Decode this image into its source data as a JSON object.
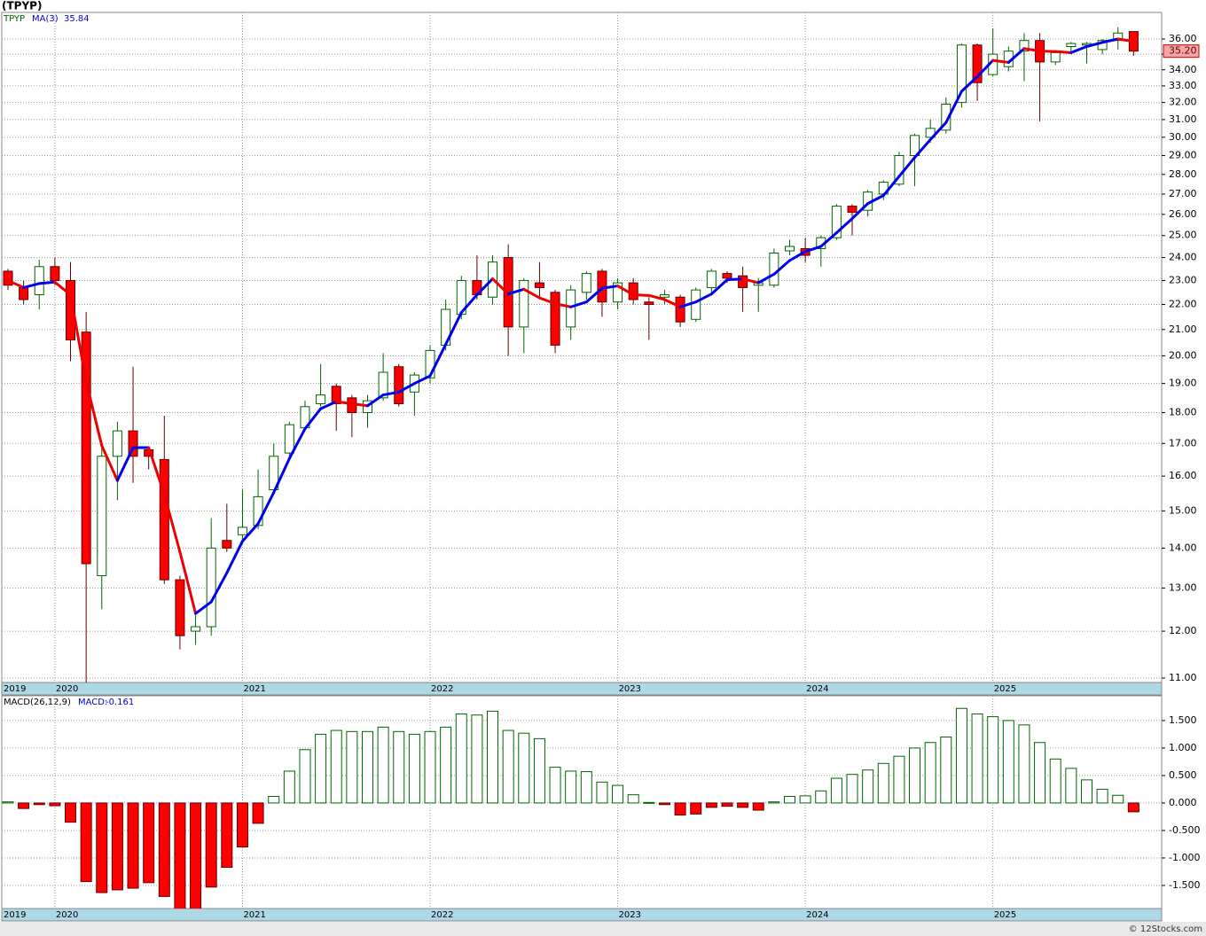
{
  "chart_data": [
    {
      "type": "candlestick",
      "title": "(TPYP)",
      "name": "TPYP",
      "categories": [
        "2019",
        null,
        null,
        "2020",
        null,
        null,
        null,
        null,
        null,
        null,
        null,
        null,
        null,
        null,
        null,
        "2021",
        null,
        null,
        null,
        null,
        null,
        null,
        null,
        null,
        null,
        null,
        null,
        "2022",
        null,
        null,
        null,
        null,
        null,
        null,
        null,
        null,
        null,
        null,
        null,
        "2023",
        null,
        null,
        null,
        null,
        null,
        null,
        null,
        null,
        null,
        null,
        null,
        "2024",
        null,
        null,
        null,
        null,
        null,
        null,
        null,
        null,
        null,
        null,
        null,
        "2025",
        null,
        null,
        null,
        null,
        null,
        null,
        null,
        null,
        null
      ],
      "open": [
        23.4,
        22.7,
        22.4,
        23.6,
        23.0,
        20.9,
        13.3,
        16.6,
        17.4,
        16.8,
        16.5,
        13.2,
        12.0,
        12.1,
        14.2,
        14.35,
        14.6,
        15.6,
        16.7,
        17.5,
        18.3,
        18.9,
        18.5,
        18.0,
        18.5,
        19.6,
        18.7,
        19.2,
        20.4,
        21.6,
        23.0,
        22.3,
        24.0,
        21.1,
        22.9,
        22.5,
        21.1,
        22.5,
        23.4,
        22.1,
        22.9,
        22.1,
        22.3,
        22.3,
        21.4,
        22.7,
        23.3,
        23.2,
        22.8,
        22.8,
        24.3,
        24.4,
        24.4,
        24.9,
        26.4,
        26.2,
        27.0,
        27.5,
        29.0,
        30.0,
        30.4,
        32.0,
        35.6,
        33.7,
        34.2,
        35.2,
        35.9,
        34.5,
        35.5,
        35.6,
        35.3,
        35.9,
        36.5
      ],
      "high": [
        23.5,
        23.0,
        23.9,
        24.0,
        23.8,
        21.7,
        17.0,
        17.7,
        19.6,
        16.9,
        17.9,
        13.3,
        12.4,
        14.8,
        15.2,
        15.6,
        16.2,
        17.0,
        17.7,
        18.4,
        19.7,
        19.0,
        18.6,
        18.6,
        20.1,
        19.7,
        19.4,
        20.4,
        22.2,
        23.2,
        24.1,
        24.1,
        24.6,
        23.1,
        23.8,
        22.6,
        22.8,
        23.4,
        23.5,
        23.1,
        23.1,
        22.3,
        22.6,
        22.4,
        22.7,
        23.5,
        23.4,
        23.6,
        23.1,
        24.4,
        24.8,
        24.9,
        25.0,
        26.5,
        26.5,
        27.2,
        27.7,
        29.2,
        30.2,
        31.0,
        32.3,
        35.7,
        35.7,
        36.7,
        35.5,
        36.4,
        36.4,
        35.2,
        35.8,
        35.8,
        36.0,
        36.8,
        36.5
      ],
      "low": [
        22.6,
        22.0,
        21.8,
        22.8,
        19.8,
        10.9,
        12.5,
        15.3,
        15.8,
        16.2,
        13.1,
        11.6,
        11.7,
        11.9,
        13.9,
        14.2,
        14.5,
        15.5,
        16.6,
        17.4,
        18.2,
        17.4,
        17.2,
        17.5,
        18.4,
        18.2,
        17.9,
        19.0,
        20.2,
        21.4,
        22.2,
        22.0,
        20.0,
        20.1,
        22.3,
        20.1,
        20.6,
        22.2,
        21.5,
        21.8,
        22.0,
        20.6,
        22.0,
        21.1,
        21.3,
        22.5,
        22.9,
        21.7,
        21.7,
        22.7,
        24.1,
        23.8,
        23.6,
        24.8,
        25.0,
        25.9,
        26.7,
        27.4,
        27.4,
        29.7,
        30.2,
        31.7,
        32.1,
        33.6,
        33.9,
        33.3,
        30.9,
        34.3,
        35.0,
        34.4,
        35.0,
        35.3,
        34.9
      ],
      "close": [
        22.8,
        22.2,
        23.6,
        23.0,
        20.6,
        13.6,
        16.6,
        17.4,
        16.6,
        16.6,
        13.2,
        11.9,
        12.1,
        14.0,
        14.0,
        14.55,
        15.4,
        16.6,
        17.6,
        18.2,
        18.6,
        18.3,
        18.0,
        18.4,
        19.4,
        18.3,
        19.3,
        20.2,
        21.8,
        23.0,
        22.4,
        23.8,
        21.1,
        23.0,
        22.7,
        20.4,
        22.6,
        23.3,
        22.1,
        22.9,
        22.2,
        22.0,
        22.4,
        21.3,
        22.6,
        23.4,
        23.1,
        22.7,
        22.9,
        24.2,
        24.5,
        24.1,
        24.9,
        26.4,
        26.1,
        27.1,
        27.6,
        29.0,
        30.1,
        30.5,
        31.9,
        35.6,
        33.2,
        35.0,
        35.2,
        35.9,
        34.5,
        35.1,
        35.7,
        35.7,
        35.9,
        36.4,
        35.2
      ],
      "last_price_label": "35.20",
      "up_color": "#006400",
      "down_color": "#ff0000",
      "ma": {
        "name": "MA(3)",
        "rise_color": "#0000ee",
        "fall_color": "#ee0000",
        "values": [
          23.0,
          22.7,
          22.87,
          22.93,
          22.4,
          19.07,
          16.93,
          15.87,
          16.87,
          16.87,
          15.47,
          13.9,
          12.4,
          12.67,
          13.37,
          14.18,
          14.65,
          15.52,
          16.53,
          17.47,
          18.13,
          18.37,
          18.3,
          18.23,
          18.6,
          18.7,
          19.0,
          19.27,
          20.43,
          21.67,
          22.4,
          23.07,
          22.43,
          22.63,
          22.27,
          22.03,
          21.9,
          22.1,
          22.67,
          22.77,
          22.4,
          22.37,
          22.2,
          21.9,
          22.1,
          22.43,
          23.03,
          23.07,
          22.9,
          23.27,
          23.87,
          24.27,
          24.5,
          25.13,
          25.8,
          26.53,
          26.93,
          27.9,
          28.9,
          29.87,
          30.83,
          32.67,
          33.57,
          34.6,
          34.47,
          35.37,
          35.2,
          35.17,
          35.1,
          35.5,
          35.77,
          36.0,
          35.84
        ]
      },
      "log_scale": true,
      "grid": true,
      "ylim": [
        10.91,
        37.82
      ],
      "yticks": [
        {
          "value": 11,
          "label": "11.00"
        },
        {
          "value": 12,
          "label": "12.00"
        },
        {
          "value": 13,
          "label": "13.00"
        },
        {
          "value": 14,
          "label": "14.00"
        },
        {
          "value": 15,
          "label": "15.00"
        },
        {
          "value": 16,
          "label": "16.00"
        },
        {
          "value": 17,
          "label": "17.00"
        },
        {
          "value": 18,
          "label": "18.00"
        },
        {
          "value": 19,
          "label": "19.00"
        },
        {
          "value": 20,
          "label": "20.00"
        },
        {
          "value": 21,
          "label": "21.00"
        },
        {
          "value": 22,
          "label": "22.00"
        },
        {
          "value": 23,
          "label": "23.00"
        },
        {
          "value": 24,
          "label": "24.00"
        },
        {
          "value": 25,
          "label": "25.00"
        },
        {
          "value": 26,
          "label": "26.00"
        },
        {
          "value": 27,
          "label": "27.00"
        },
        {
          "value": 28,
          "label": "28.00"
        },
        {
          "value": 29,
          "label": "29.00"
        },
        {
          "value": 30,
          "label": "30.00"
        },
        {
          "value": 31,
          "label": "31.00"
        },
        {
          "value": 32,
          "label": "32.00"
        },
        {
          "value": 33,
          "label": "33.00"
        },
        {
          "value": 34,
          "label": "34.00"
        },
        {
          "value": 35,
          "label": "35.00"
        },
        {
          "value": 36,
          "label": "36.00"
        }
      ]
    },
    {
      "type": "bar",
      "name": "MACD(26,12,9)",
      "value_name": "MACD:",
      "categories": [
        "2019",
        null,
        null,
        "2020",
        null,
        null,
        null,
        null,
        null,
        null,
        null,
        null,
        null,
        null,
        null,
        "2021",
        null,
        null,
        null,
        null,
        null,
        null,
        null,
        null,
        null,
        null,
        null,
        "2022",
        null,
        null,
        null,
        null,
        null,
        null,
        null,
        null,
        null,
        null,
        null,
        "2023",
        null,
        null,
        null,
        null,
        null,
        null,
        null,
        null,
        null,
        null,
        null,
        "2024",
        null,
        null,
        null,
        null,
        null,
        null,
        null,
        null,
        null,
        null,
        null,
        "2025",
        null,
        null,
        null,
        null,
        null,
        null,
        null,
        null,
        null
      ],
      "values": [
        0.02,
        -0.1,
        -0.03,
        -0.05,
        -0.35,
        -1.43,
        -1.63,
        -1.58,
        -1.55,
        -1.45,
        -1.7,
        -2.0,
        -1.98,
        -1.53,
        -1.17,
        -0.8,
        -0.37,
        0.12,
        0.58,
        0.97,
        1.25,
        1.32,
        1.3,
        1.3,
        1.38,
        1.3,
        1.25,
        1.3,
        1.38,
        1.62,
        1.6,
        1.67,
        1.32,
        1.27,
        1.17,
        0.65,
        0.58,
        0.57,
        0.38,
        0.32,
        0.15,
        0.01,
        -0.03,
        -0.22,
        -0.2,
        -0.08,
        -0.06,
        -0.08,
        -0.13,
        0.02,
        0.12,
        0.13,
        0.22,
        0.45,
        0.52,
        0.6,
        0.72,
        0.85,
        1.0,
        1.1,
        1.2,
        1.72,
        1.62,
        1.57,
        1.5,
        1.42,
        1.1,
        0.8,
        0.63,
        0.42,
        0.25,
        0.14,
        -0.161
      ],
      "positive_color": "#006400",
      "negative_color": "#ff0000",
      "grid": true,
      "ylim": [
        -1.92,
        1.95
      ],
      "yticks": [
        {
          "value": -1.5,
          "label": "-1.500"
        },
        {
          "value": -1,
          "label": "-1.000"
        },
        {
          "value": -0.5,
          "label": "-0.500"
        },
        {
          "value": 0,
          "label": "0.000"
        },
        {
          "value": 0.5,
          "label": "0.500"
        },
        {
          "value": 1,
          "label": "1.000"
        },
        {
          "value": 1.5,
          "label": "1.500"
        }
      ]
    }
  ],
  "footer": "© 12Stocks.com"
}
